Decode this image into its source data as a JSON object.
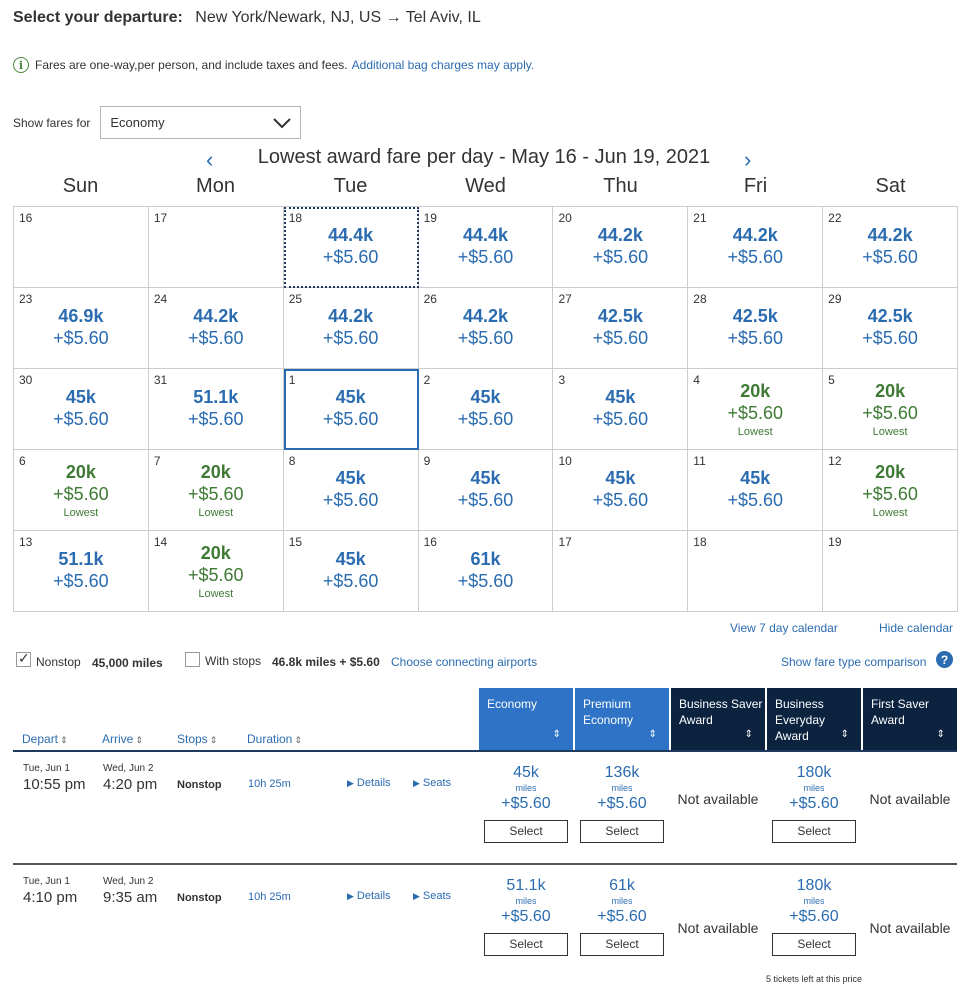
{
  "header": {
    "label": "Select your departure:",
    "route": "New York/Newark, NJ, US → Tel Aviv, IL"
  },
  "notice": {
    "bold_text": "Fares are one-way,",
    "text": " per person, and include taxes and fees.",
    "link": "Additional bag charges may apply."
  },
  "show_fares": {
    "label": "Show fares for",
    "value": "Economy"
  },
  "calendar": {
    "title": "Lowest award fare per day - May 16 - Jun 19, 2021",
    "prev_icon": "chevron-left-icon",
    "next_icon": "chevron-right-icon",
    "weekdays": [
      "Sun",
      "Mon",
      "Tue",
      "Wed",
      "Thu",
      "Fri",
      "Sat"
    ],
    "lowest_label": "Lowest",
    "rows": [
      [
        {
          "day": "16",
          "miles": "",
          "tax": ""
        },
        {
          "day": "17",
          "miles": "",
          "tax": ""
        },
        {
          "day": "18",
          "miles": "44.4k",
          "tax": "+$5.60"
        },
        {
          "day": "19",
          "miles": "44.4k",
          "tax": "+$5.60"
        },
        {
          "day": "20",
          "miles": "44.2k",
          "tax": "+$5.60"
        },
        {
          "day": "21",
          "miles": "44.2k",
          "tax": "+$5.60"
        },
        {
          "day": "22",
          "miles": "44.2k",
          "tax": "+$5.60"
        }
      ],
      [
        {
          "day": "23",
          "miles": "46.9k",
          "tax": "+$5.60"
        },
        {
          "day": "24",
          "miles": "44.2k",
          "tax": "+$5.60"
        },
        {
          "day": "25",
          "miles": "44.2k",
          "tax": "+$5.60"
        },
        {
          "day": "26",
          "miles": "44.2k",
          "tax": "+$5.60"
        },
        {
          "day": "27",
          "miles": "42.5k",
          "tax": "+$5.60"
        },
        {
          "day": "28",
          "miles": "42.5k",
          "tax": "+$5.60"
        },
        {
          "day": "29",
          "miles": "42.5k",
          "tax": "+$5.60"
        }
      ],
      [
        {
          "day": "30",
          "miles": "45k",
          "tax": "+$5.60"
        },
        {
          "day": "31",
          "miles": "51.1k",
          "tax": "+$5.60"
        },
        {
          "day": "1",
          "miles": "45k",
          "tax": "+$5.60"
        },
        {
          "day": "2",
          "miles": "45k",
          "tax": "+$5.60"
        },
        {
          "day": "3",
          "miles": "45k",
          "tax": "+$5.60"
        },
        {
          "day": "4",
          "miles": "20k",
          "tax": "+$5.60",
          "lowest": true
        },
        {
          "day": "5",
          "miles": "20k",
          "tax": "+$5.60",
          "lowest": true
        }
      ],
      [
        {
          "day": "6",
          "miles": "20k",
          "tax": "+$5.60",
          "lowest": true
        },
        {
          "day": "7",
          "miles": "20k",
          "tax": "+$5.60",
          "lowest": true
        },
        {
          "day": "8",
          "miles": "45k",
          "tax": "+$5.60"
        },
        {
          "day": "9",
          "miles": "45k",
          "tax": "+$5.60"
        },
        {
          "day": "10",
          "miles": "45k",
          "tax": "+$5.60"
        },
        {
          "day": "11",
          "miles": "45k",
          "tax": "+$5.60"
        },
        {
          "day": "12",
          "miles": "20k",
          "tax": "+$5.60",
          "lowest": true
        }
      ],
      [
        {
          "day": "13",
          "miles": "51.1k",
          "tax": "+$5.60"
        },
        {
          "day": "14",
          "miles": "20k",
          "tax": "+$5.60",
          "lowest": true
        },
        {
          "day": "15",
          "miles": "45k",
          "tax": "+$5.60"
        },
        {
          "day": "16",
          "miles": "61k",
          "tax": "+$5.60"
        },
        {
          "day": "17",
          "miles": "",
          "tax": ""
        },
        {
          "day": "18",
          "miles": "",
          "tax": ""
        },
        {
          "day": "19",
          "miles": "",
          "tax": ""
        }
      ]
    ],
    "view7": "View 7 day calendar",
    "hide": "Hide calendar"
  },
  "filters": {
    "nonstop_label": "Nonstop",
    "nonstop_miles": "45,000 miles",
    "nonstop_checked": true,
    "stops_label": "With stops",
    "stops_miles": "46.8k miles + $5.60",
    "stops_checked": false,
    "connect_link": "Choose connecting airports",
    "compare_link": "Show fare type comparison"
  },
  "table": {
    "headers": {
      "depart": "Depart",
      "arrive": "Arrive",
      "stops": "Stops",
      "duration": "Duration"
    },
    "fare_columns": [
      "Economy",
      "Premium Economy",
      "Business Saver Award",
      "Business Everyday Award",
      "First Saver Award"
    ],
    "miles_label": "miles",
    "select_label": "Select",
    "not_available": "Not available",
    "details_label": "Details",
    "seats_label": "Seats",
    "flights": [
      {
        "depart_date": "Tue, Jun 1",
        "depart_time": "10:55 pm",
        "arrive_date": "Wed, Jun 2",
        "arrive_time": "4:20 pm",
        "stops": "Nonstop",
        "duration": "10h 25m",
        "economy": {
          "miles": "45k",
          "tax": "+$5.60"
        },
        "premium": {
          "miles": "136k",
          "tax": "+$5.60"
        },
        "business_everyday": {
          "miles": "180k",
          "tax": "+$5.60"
        }
      },
      {
        "depart_date": "Tue, Jun 1",
        "depart_time": "4:10 pm",
        "arrive_date": "Wed, Jun 2",
        "arrive_time": "9:35 am",
        "stops": "Nonstop",
        "duration": "10h 25m",
        "economy": {
          "miles": "51.1k",
          "tax": "+$5.60"
        },
        "premium": {
          "miles": "61k",
          "tax": "+$5.60"
        },
        "business_everyday": {
          "miles": "180k",
          "tax": "+$5.60"
        },
        "tickets_note": "5 tickets left at this price"
      }
    ]
  }
}
